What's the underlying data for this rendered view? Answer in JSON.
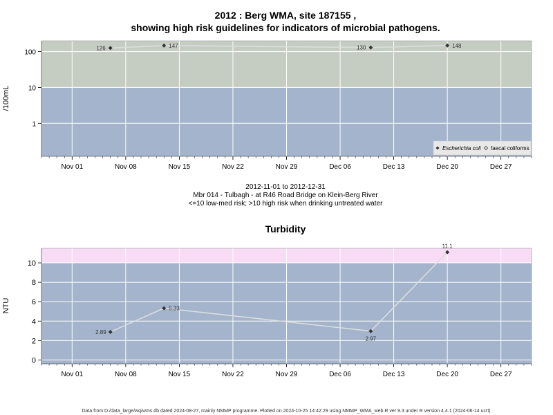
{
  "colors": {
    "low_band": "#a3b4cc",
    "high_band_ecoli": "#c5cdc2",
    "high_band_turbidity": "#f8dcf6",
    "grid": "#ffffff",
    "series_line": "#dddddd",
    "marker": "#333333"
  },
  "x_axis": {
    "ticks": [
      "Nov 01",
      "Nov 08",
      "Nov 15",
      "Nov 22",
      "Nov 29",
      "Dec 06",
      "Dec 13",
      "Dec 20",
      "Dec 27"
    ]
  },
  "footer": "Data from D:/data_large/wq/wms.db dated 2024-08-27, mainly NMMP programme. Plotted on 2024-10-25 14:42:29 using NMMP_WMA_web.R ver 9.3 under R version 4.4.1 (2024-06-14 ucrt)",
  "chart_data": [
    {
      "type": "line",
      "title": "2012 : Berg WMA, site 187155 ,",
      "title_line2": "showing high risk guidelines for indicators of microbial pathogens.",
      "ylabel": "/100mL",
      "scale": "log",
      "ylim": [
        0.12,
        200
      ],
      "yticks": [
        1,
        10,
        100
      ],
      "ytick_labels": [
        "1",
        "10",
        "100"
      ],
      "xlim": [
        "2012-10-28",
        "2012-12-31"
      ],
      "guideline_threshold": 10,
      "grid": true,
      "legend_position": "bottom-right",
      "series": [
        {
          "name": "Escherichia coli",
          "marker": "filled-diamond",
          "x": [
            "2012-11-06",
            "2012-11-13",
            "2012-12-10",
            "2012-12-20"
          ],
          "values": [
            126,
            147,
            130,
            148
          ],
          "labels": [
            "126",
            "147",
            "130",
            "148"
          ]
        }
      ],
      "legend": [
        {
          "label": "Escherichia coli",
          "marker": "filled-diamond",
          "italic": true
        },
        {
          "label": "faecal coliforms",
          "marker": "open-diamond",
          "italic": false
        }
      ],
      "subtitle": [
        "2012-11-01 to 2012-12-31",
        "Mbr 014 - Tulbagh - at R46 Road Bridge on Klein-Berg River",
        "<=10 low-med risk; >10 high risk when drinking untreated water"
      ]
    },
    {
      "type": "line",
      "title": "Turbidity",
      "ylabel": "NTU",
      "ylim": [
        -0.4,
        11.5
      ],
      "yticks": [
        0,
        2,
        4,
        6,
        8,
        10
      ],
      "ytick_labels": [
        "0",
        "2",
        "4",
        "6",
        "8",
        "10"
      ],
      "xlim": [
        "2012-10-28",
        "2012-12-31"
      ],
      "guideline_threshold": 10,
      "grid": true,
      "series": [
        {
          "x": [
            "2012-11-06",
            "2012-11-13",
            "2012-12-10",
            "2012-12-20"
          ],
          "values": [
            2.89,
            5.33,
            2.97,
            11.1
          ],
          "labels": [
            "2.89",
            "5.33",
            "2.97",
            "11.1"
          ]
        }
      ]
    }
  ]
}
